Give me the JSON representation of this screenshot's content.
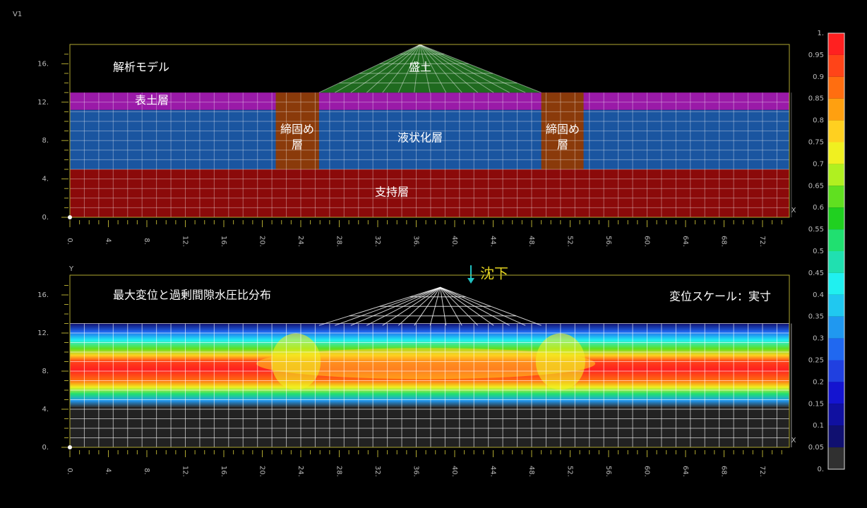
{
  "view_label": "V1",
  "top_panel": {
    "title": "解析モデル",
    "x_axis_label": "X",
    "xticks": [
      "0.",
      "4.",
      "8.",
      "12.",
      "16.",
      "20.",
      "24.",
      "28.",
      "32.",
      "36.",
      "40.",
      "44.",
      "48.",
      "52.",
      "56.",
      "60.",
      "64.",
      "68.",
      "72."
    ],
    "yticks": [
      "0.",
      "4.",
      "8.",
      "12.",
      "16."
    ],
    "embankment": "盛土",
    "topsoil": "表土層",
    "liquefaction": "液状化層",
    "bearing": "支持層",
    "compacted_left": [
      "締固め",
      "層"
    ],
    "compacted_right": [
      "締固め",
      "層"
    ]
  },
  "settlement_label": "沈下",
  "bottom_panel": {
    "title": "最大変位と過剰間隙水圧比分布",
    "scale_note": "変位スケール：実寸",
    "x_axis_label": "X",
    "y_axis_label": "Y",
    "xticks": [
      "0.",
      "4.",
      "8.",
      "12.",
      "16.",
      "20.",
      "24.",
      "28.",
      "32.",
      "36.",
      "40.",
      "44.",
      "48.",
      "52.",
      "56.",
      "60.",
      "64.",
      "68.",
      "72."
    ],
    "yticks": [
      "0.",
      "4.",
      "8.",
      "12.",
      "16."
    ]
  },
  "colorbar": {
    "labels": [
      "1.",
      "0.95",
      "0.9",
      "0.85",
      "0.8",
      "0.75",
      "0.7",
      "0.65",
      "0.6",
      "0.55",
      "0.5",
      "0.45",
      "0.4",
      "0.35",
      "0.3",
      "0.25",
      "0.2",
      "0.15",
      "0.1",
      "0.05",
      "0."
    ],
    "colors": [
      "#ff2020",
      "#ff4418",
      "#ff6e10",
      "#ffa010",
      "#ffd020",
      "#f0f020",
      "#b0f020",
      "#60e020",
      "#20d020",
      "#20e070",
      "#20e0b0",
      "#20f0f0",
      "#20c8f0",
      "#2098f0",
      "#2068f0",
      "#2040e0",
      "#1414d0",
      "#1010a0",
      "#101070",
      "#303030"
    ]
  }
}
